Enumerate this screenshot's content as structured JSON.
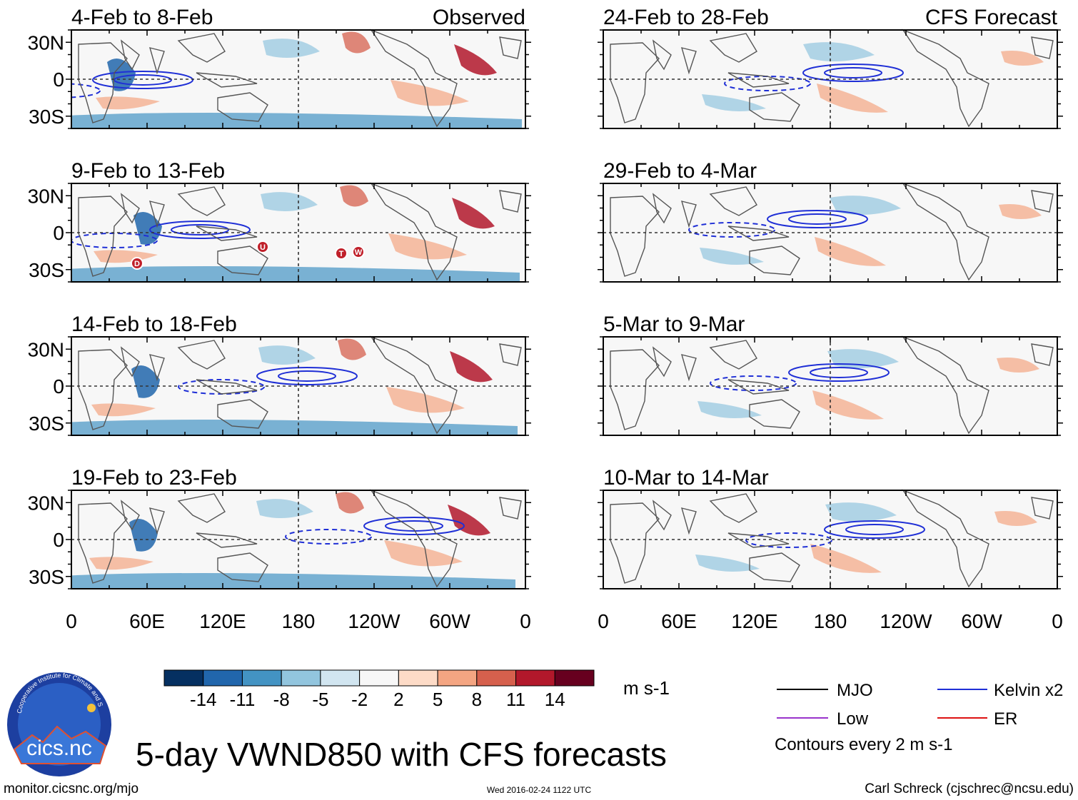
{
  "figure": {
    "title": "5-day VWND850 with CFS forecasts",
    "website": "monitor.cicsnc.org/mjo",
    "timestamp": "Wed 2016-02-24 1122 UTC",
    "author": "Carl Schreck (cjschrec@ncsu.edu)",
    "logo_text": "cics.nc",
    "logo_ring_text": "Cooperative Institute for Climate and Satellites"
  },
  "column_headers": {
    "left": "Observed",
    "right": "CFS Forecast"
  },
  "panels_left": [
    {
      "title": "4-Feb to 8-Feb"
    },
    {
      "title": "9-Feb to 13-Feb"
    },
    {
      "title": "14-Feb to 18-Feb"
    },
    {
      "title": "19-Feb to 23-Feb"
    }
  ],
  "panels_right": [
    {
      "title": "24-Feb to 28-Feb"
    },
    {
      "title": "29-Feb to 4-Mar"
    },
    {
      "title": "5-Mar to 9-Mar"
    },
    {
      "title": "10-Mar to 14-Mar"
    }
  ],
  "storm_markers": [
    "D",
    "U",
    "T",
    "W"
  ],
  "chart_data": {
    "type": "heatmap",
    "variable": "VWND850",
    "yticks": [
      "30N",
      "0",
      "30S"
    ],
    "xticks": [
      "0",
      "60E",
      "120E",
      "180",
      "120W",
      "60W",
      "0"
    ],
    "xlim_deg": [
      0,
      360
    ],
    "ylim_deg": [
      -40,
      40
    ],
    "colorbar": {
      "units": "m s-1",
      "levels": [
        "-14",
        "-11",
        "-8",
        "-5",
        "-2",
        "2",
        "5",
        "8",
        "11",
        "14"
      ],
      "colors": [
        "#053061",
        "#2166ac",
        "#4393c3",
        "#92c5de",
        "#d1e5f0",
        "#f7f7f7",
        "#fddbc7",
        "#f4a582",
        "#d6604d",
        "#b2182b",
        "#67001f"
      ]
    },
    "legend": [
      {
        "label": "MJO",
        "color": "#000000"
      },
      {
        "label": "Kelvin x2",
        "color": "#1f2fd6"
      },
      {
        "label": "Low",
        "color": "#9933cc"
      },
      {
        "label": "ER",
        "color": "#dd1111"
      }
    ],
    "contour_note": "Contours every 2 m s-1"
  }
}
